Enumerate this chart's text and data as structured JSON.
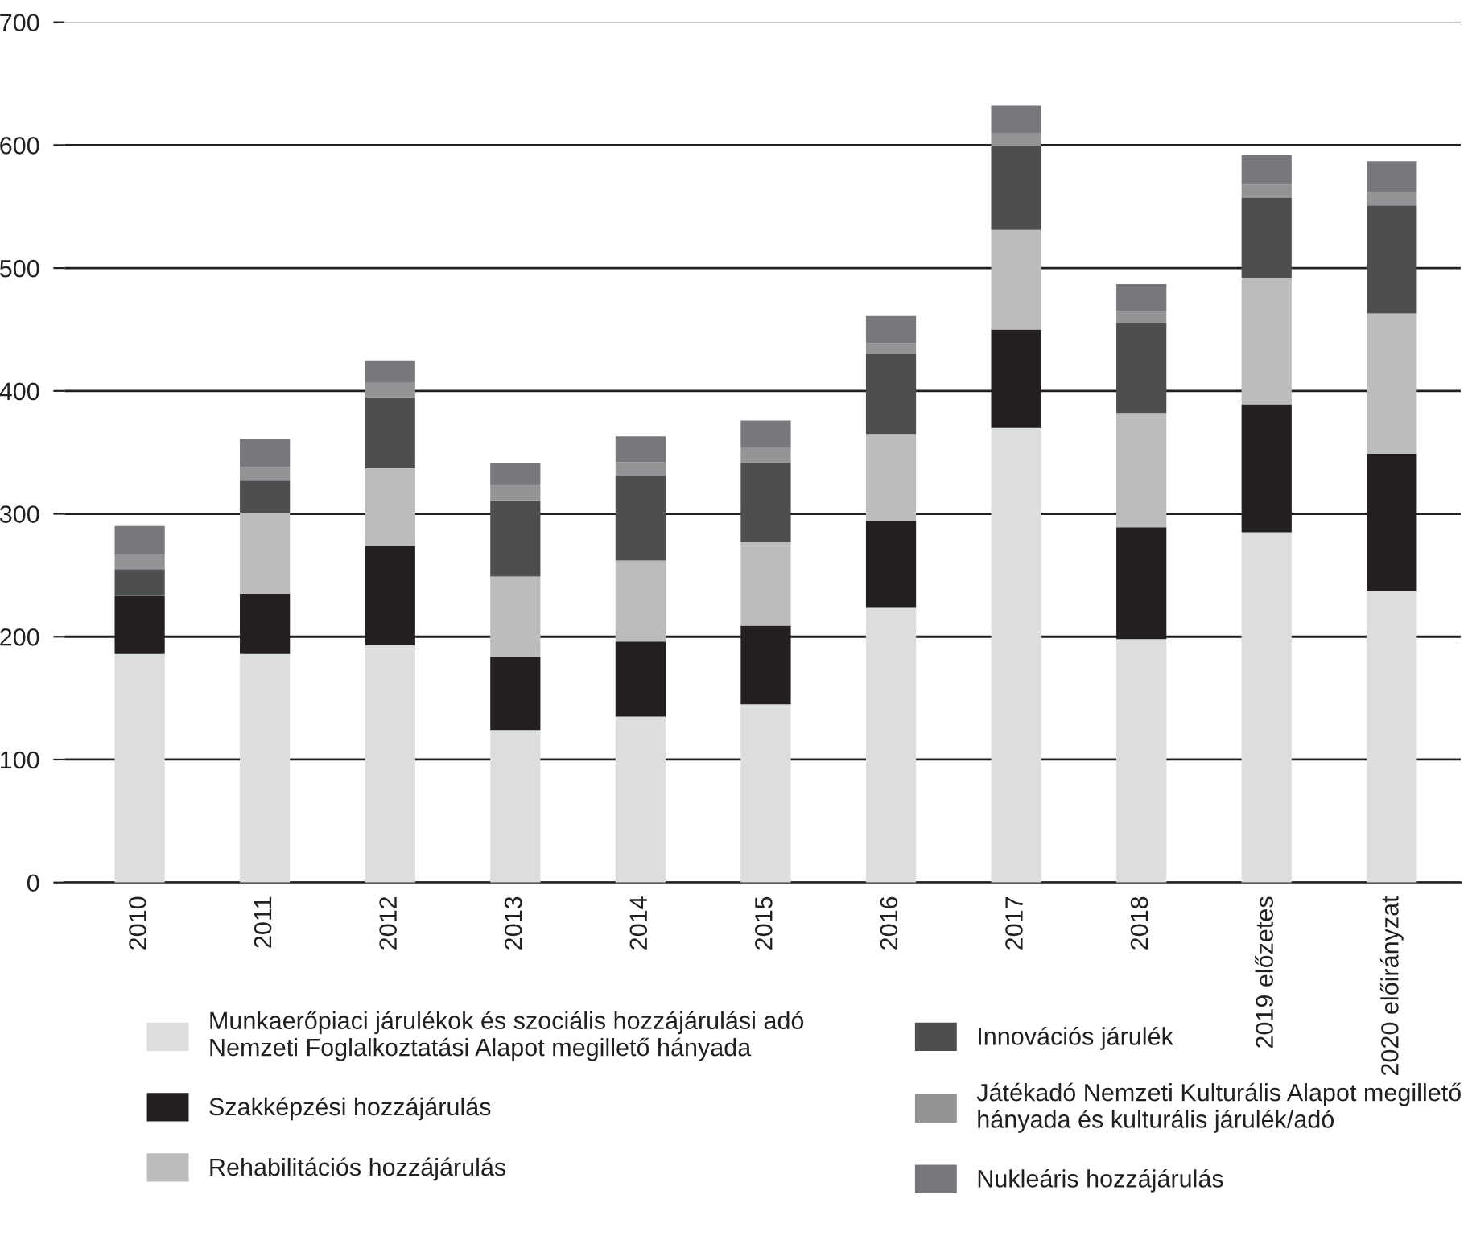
{
  "chart_data": {
    "type": "bar",
    "stacked": true,
    "categories": [
      "2010",
      "2011",
      "2012",
      "2013",
      "2014",
      "2015",
      "2016",
      "2017",
      "2018",
      "2019 előzetes",
      "2020 előirányzat"
    ],
    "series": [
      {
        "name": "Munkaerőpiaci járulékok és szociális hozzájárulási adó\nNemzeti Foglalkoztatási Alapot megillető hányada",
        "color": "#dcdddf",
        "values": [
          186,
          186,
          193,
          124,
          135,
          145,
          224,
          370,
          198,
          285,
          237
        ]
      },
      {
        "name": "Szakképzési hozzájárulás",
        "color": "#231f20",
        "values": [
          47,
          49,
          81,
          60,
          61,
          64,
          70,
          80,
          91,
          104,
          112
        ]
      },
      {
        "name": "Rehabilitációs hozzájárulás",
        "color": "#bbbcbe",
        "values": [
          0,
          66,
          63,
          65,
          66,
          68,
          71,
          81,
          93,
          103,
          114
        ]
      },
      {
        "name": "Innovációs járulék",
        "color": "#4d4e50",
        "values": [
          22,
          26,
          58,
          62,
          69,
          65,
          65,
          68,
          73,
          65,
          88
        ]
      },
      {
        "name": "Játékadó Nemzeti Kulturális Alapot megillető\nhányada és kulturális járulék/adó",
        "color": "#939496",
        "values": [
          12,
          11,
          12,
          12,
          11,
          12,
          9,
          11,
          10,
          11,
          11
        ]
      },
      {
        "name": "Nukleáris hozzájárulás",
        "color": "#77787b",
        "values": [
          23,
          23,
          18,
          18,
          21,
          22,
          22,
          22,
          22,
          24,
          25
        ]
      }
    ],
    "ylim": [
      0,
      700
    ],
    "yticks": [
      0,
      100,
      200,
      300,
      400,
      500,
      600,
      700
    ],
    "grid": "y",
    "legend": "bottom"
  }
}
